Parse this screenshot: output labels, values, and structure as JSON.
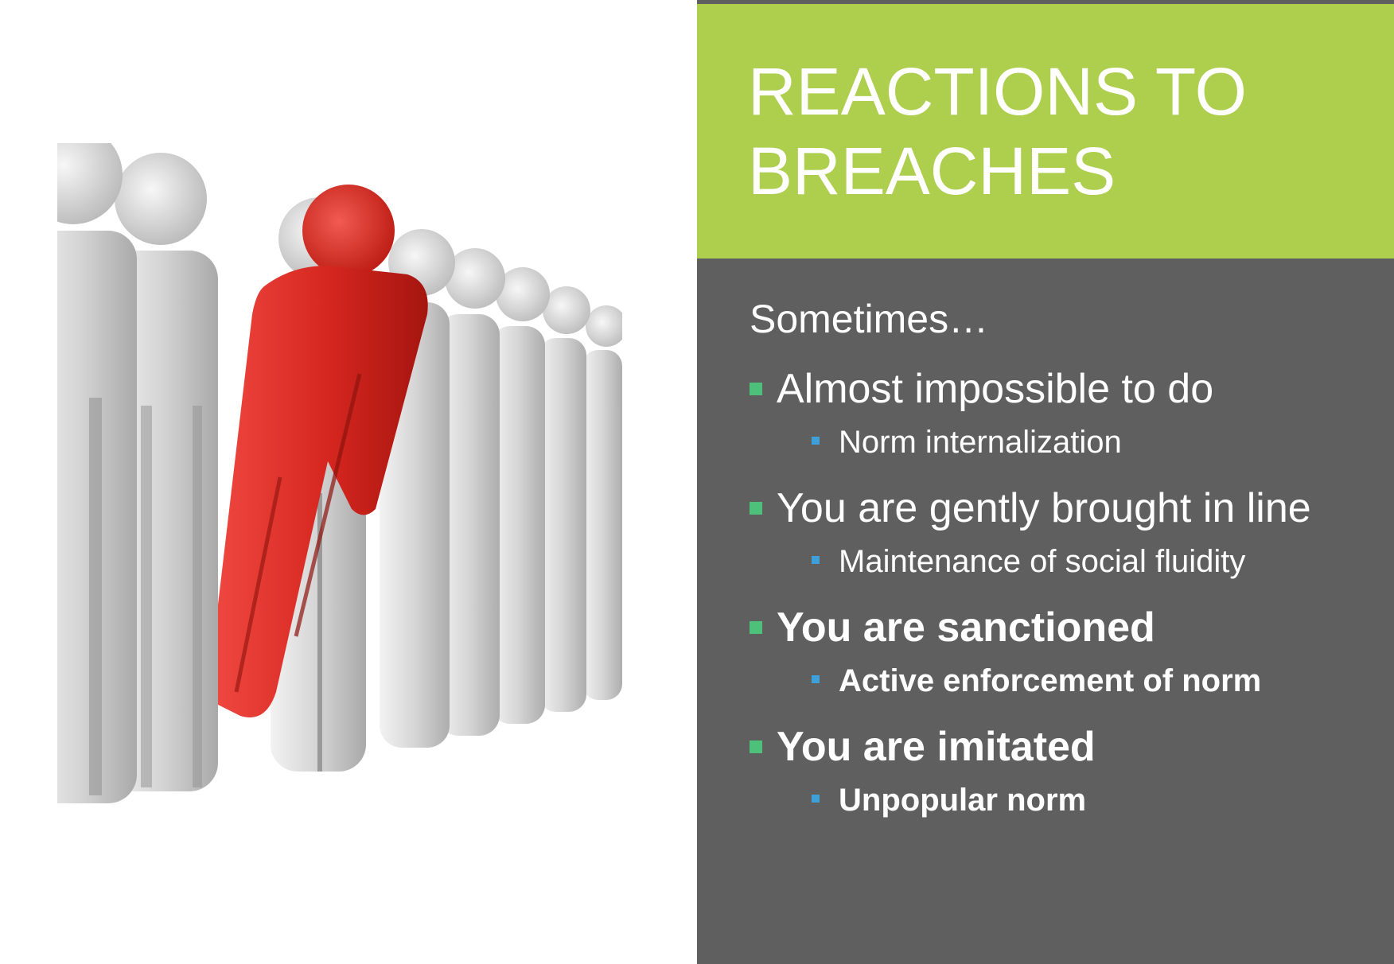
{
  "slide": {
    "title": "REACTIONS TO BREACHES",
    "intro": "Sometimes…",
    "bullets": [
      {
        "text": "Almost impossible to do",
        "sub": "Norm internalization",
        "bold": false
      },
      {
        "text": "You are gently brought in line",
        "sub": "Maintenance of social fluidity",
        "bold": false
      },
      {
        "text": "You are sanctioned",
        "sub": "Active enforcement of norm",
        "bold": true
      },
      {
        "text": "You are imitated",
        "sub": "Unpopular norm",
        "bold": true
      }
    ]
  },
  "illustration": {
    "icon": "standout-person-illustration"
  },
  "colors": {
    "title_band": "#aece4e",
    "panel": "#5f5f5f",
    "bullet_marker": "#4ec07a",
    "sub_marker": "#3f9fd9",
    "highlight_figure": "#d9322c",
    "crowd_figure": "#cfcfcf"
  }
}
